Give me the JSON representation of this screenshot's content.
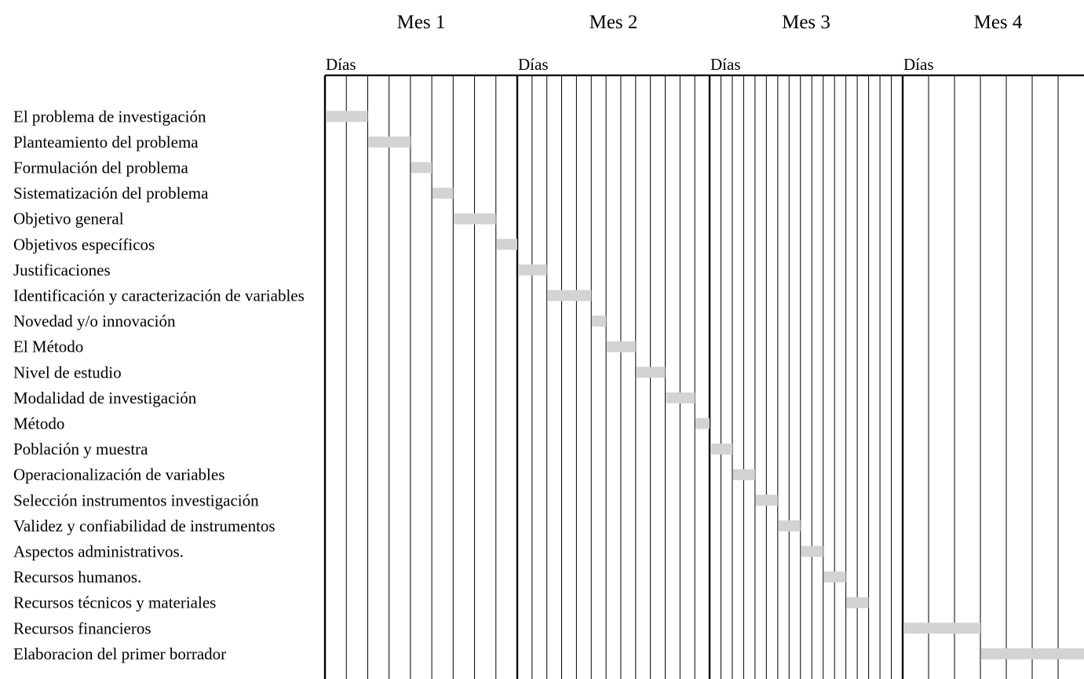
{
  "chart_data": {
    "type": "gantt",
    "months": [
      {
        "label": "Mes 1",
        "sublabel": "Días",
        "columns": 9
      },
      {
        "label": "Mes 2",
        "sublabel": "Días",
        "columns": 13
      },
      {
        "label": "Mes 3",
        "sublabel": "Días",
        "columns": 17
      },
      {
        "label": "Mes 4",
        "sublabel": "Días",
        "columns": 7
      }
    ],
    "tasks": [
      {
        "name": "El problema de investigación",
        "month": 1,
        "start": 0,
        "span": 2
      },
      {
        "name": "Planteamiento del problema",
        "month": 1,
        "start": 2,
        "span": 2
      },
      {
        "name": "Formulación del problema",
        "month": 1,
        "start": 4,
        "span": 1
      },
      {
        "name": "Sistematización del problema",
        "month": 1,
        "start": 5,
        "span": 1
      },
      {
        "name": "Objetivo general",
        "month": 1,
        "start": 6,
        "span": 2
      },
      {
        "name": "Objetivos específicos",
        "month": 1,
        "start": 8,
        "span": 1
      },
      {
        "name": "Justificaciones",
        "month": 2,
        "start": 0,
        "span": 2
      },
      {
        "name": "Identificación y caracterización de variables",
        "month": 2,
        "start": 2,
        "span": 3
      },
      {
        "name": "Novedad y/o innovación",
        "month": 2,
        "start": 5,
        "span": 1
      },
      {
        "name": "El Método",
        "month": 2,
        "start": 6,
        "span": 2
      },
      {
        "name": "Nivel de estudio",
        "month": 2,
        "start": 8,
        "span": 2
      },
      {
        "name": "Modalidad de investigación",
        "month": 2,
        "start": 10,
        "span": 2
      },
      {
        "name": "Método",
        "month": 2,
        "start": 12,
        "span": 1
      },
      {
        "name": "Población y muestra",
        "month": 3,
        "start": 0,
        "span": 2
      },
      {
        "name": "Operacionalización de variables",
        "month": 3,
        "start": 2,
        "span": 2
      },
      {
        "name": "Selección instrumentos investigación",
        "month": 3,
        "start": 4,
        "span": 2
      },
      {
        "name": "Validez y confiabilidad de instrumentos",
        "month": 3,
        "start": 6,
        "span": 2
      },
      {
        "name": "Aspectos administrativos.",
        "month": 3,
        "start": 8,
        "span": 2
      },
      {
        "name": "Recursos humanos.",
        "month": 3,
        "start": 10,
        "span": 2
      },
      {
        "name": "Recursos técnicos y materiales",
        "month": 3,
        "start": 12,
        "span": 2
      },
      {
        "name": "Recursos financieros",
        "month": 4,
        "start": 0,
        "span": 3
      },
      {
        "name": "Elaboracion del primer borrador",
        "month": 4,
        "start": 3,
        "span": 4
      }
    ],
    "colors": {
      "bar": "#d3d3d3",
      "grid": "#000000"
    }
  }
}
